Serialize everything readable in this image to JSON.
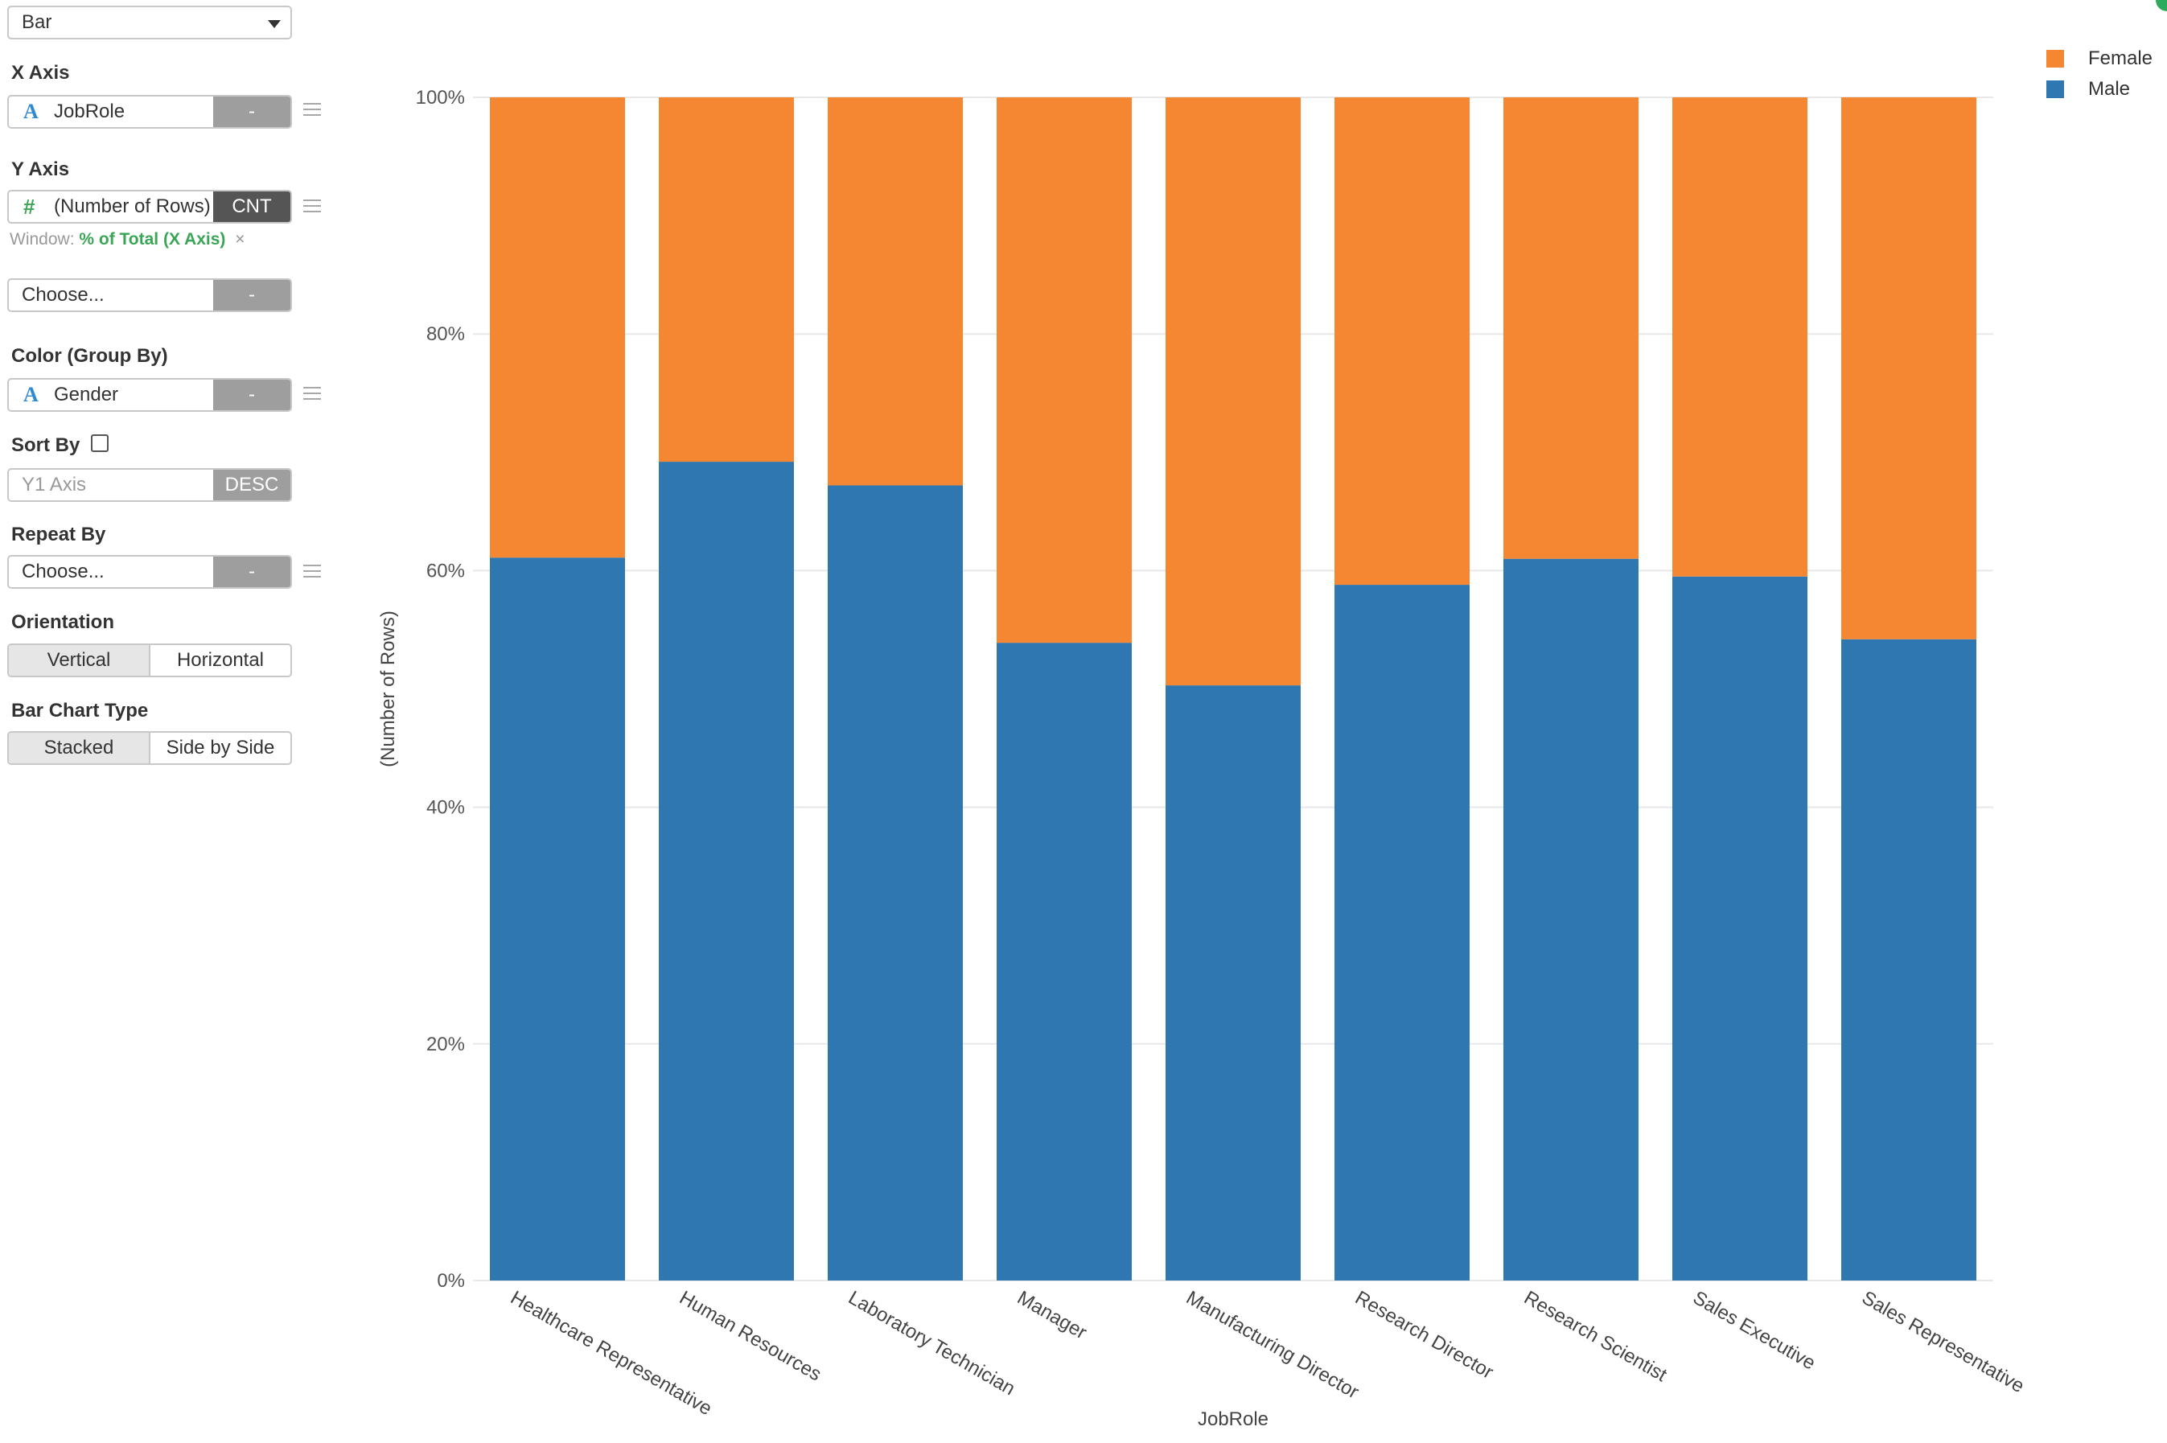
{
  "panel": {
    "chart_type": "Bar",
    "x_axis": {
      "label": "X Axis",
      "field": "JobRole",
      "button": "-"
    },
    "y_axis": {
      "label": "Y Axis",
      "field": "(Number of Rows)",
      "agg": "CNT",
      "window_label": "Window:",
      "window_value": "% of Total (X Axis)",
      "window_remove": "×"
    },
    "y2_axis": {
      "field": "Choose...",
      "button": "-"
    },
    "color": {
      "label": "Color (Group By)",
      "field": "Gender",
      "button": "-"
    },
    "sort": {
      "label": "Sort By",
      "checked": false,
      "placeholder": "Y1 Axis",
      "order": "DESC"
    },
    "repeat": {
      "label": "Repeat By",
      "field": "Choose...",
      "button": "-"
    },
    "orientation": {
      "label": "Orientation",
      "options": [
        "Vertical",
        "Horizontal"
      ],
      "selected": "Vertical"
    },
    "bar_type": {
      "label": "Bar Chart Type",
      "options": [
        "Stacked",
        "Side by Side"
      ],
      "selected": "Stacked"
    }
  },
  "legend": [
    {
      "name": "Female",
      "color": "#f58733"
    },
    {
      "name": "Male",
      "color": "#2f77b1"
    }
  ],
  "chart_data": {
    "type": "bar",
    "stacked": true,
    "xlabel": "JobRole",
    "ylabel": "(Number of Rows)",
    "ylim": [
      0,
      100
    ],
    "yticks": [
      "0%",
      "20%",
      "40%",
      "60%",
      "80%",
      "100%"
    ],
    "categories": [
      "Healthcare Representative",
      "Human Resources",
      "Laboratory Technician",
      "Manager",
      "Manufacturing Director",
      "Research Director",
      "Research Scientist",
      "Sales Executive",
      "Sales Representative"
    ],
    "series": [
      {
        "name": "Male",
        "color": "#2f77b1",
        "values": [
          61.1,
          69.2,
          67.2,
          53.9,
          50.3,
          58.8,
          61.0,
          59.5,
          54.2
        ]
      },
      {
        "name": "Female",
        "color": "#f58733",
        "values": [
          38.9,
          30.8,
          32.8,
          46.1,
          49.7,
          41.2,
          39.0,
          40.5,
          45.8
        ]
      }
    ],
    "grid": true,
    "legend_position": "top-right"
  }
}
